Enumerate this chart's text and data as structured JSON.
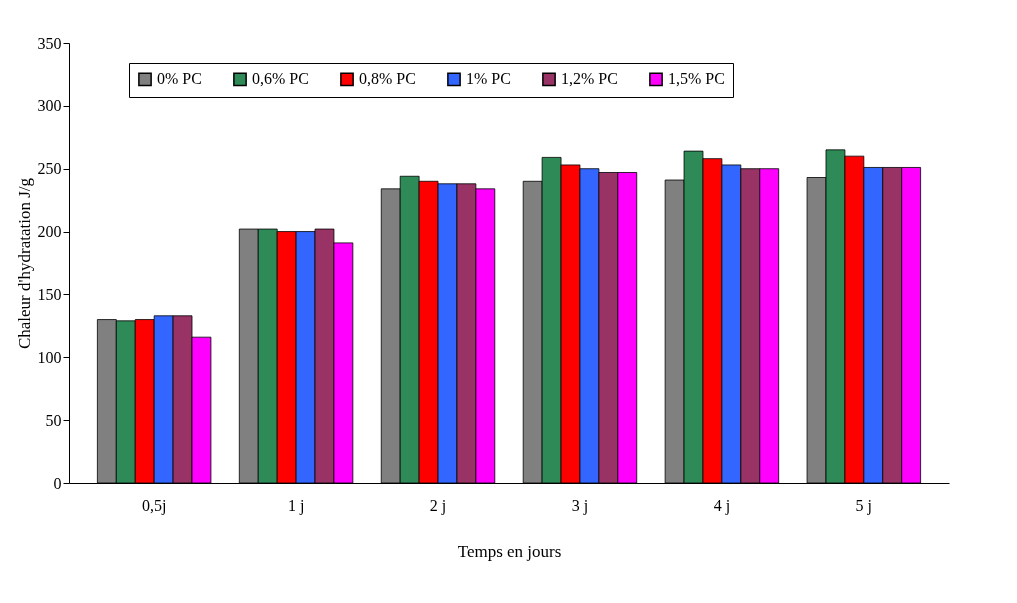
{
  "chart_data": {
    "type": "bar",
    "xlabel": "Temps en jours",
    "ylabel": "Chaleur d'hydratation J/g",
    "categories": [
      "0,5j",
      "1 j",
      "2 j",
      "3 j",
      "4 j",
      "5 j"
    ],
    "series": [
      {
        "name": "0% PC",
        "color": "#808080",
        "values": [
          130,
          202,
          234,
          240,
          241,
          243
        ]
      },
      {
        "name": "0,6% PC",
        "color": "#2e8b57",
        "values": [
          129,
          202,
          244,
          259,
          264,
          265
        ]
      },
      {
        "name": "0,8% PC",
        "color": "#ff0000",
        "values": [
          130,
          200,
          240,
          253,
          258,
          260
        ]
      },
      {
        "name": "1% PC",
        "color": "#3366ff",
        "values": [
          133,
          200,
          238,
          250,
          253,
          251
        ]
      },
      {
        "name": "1,2% PC",
        "color": "#993366",
        "values": [
          133,
          202,
          238,
          247,
          250,
          251
        ]
      },
      {
        "name": "1,5% PC",
        "color": "#ff00ff",
        "values": [
          116,
          191,
          234,
          247,
          250,
          251
        ]
      }
    ],
    "ylim": [
      0,
      350
    ],
    "yticks": [
      0,
      50,
      100,
      150,
      200,
      250,
      300,
      350
    ],
    "grid": false,
    "legend": "top"
  }
}
